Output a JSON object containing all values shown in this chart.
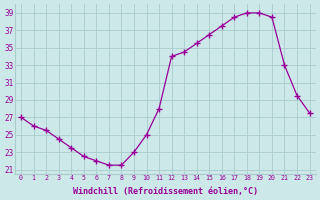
{
  "x": [
    0,
    1,
    2,
    3,
    4,
    5,
    6,
    7,
    8,
    9,
    10,
    11,
    12,
    13,
    14,
    15,
    16,
    17,
    18,
    19,
    20,
    21,
    22,
    23
  ],
  "y": [
    27,
    26,
    25.5,
    24.5,
    23.5,
    22.5,
    22,
    21.5,
    21.5,
    23,
    25,
    28,
    34,
    34.5,
    35.5,
    36.5,
    37.5,
    38.5,
    39,
    39,
    38.5,
    33,
    29.5,
    27.5
  ],
  "line_color": "#990099",
  "marker": "+",
  "bg_color": "#cce8e8",
  "grid_color": "#aacccc",
  "xlabel": "Windchill (Refroidissement éolien,°C)",
  "xlabel_color": "#990099",
  "tick_color": "#990099",
  "ylim": [
    20.5,
    40.0
  ],
  "yticks": [
    21,
    23,
    25,
    27,
    29,
    31,
    33,
    35,
    37,
    39
  ],
  "xticks": [
    0,
    1,
    2,
    3,
    4,
    5,
    6,
    7,
    8,
    9,
    10,
    11,
    12,
    13,
    14,
    15,
    16,
    17,
    18,
    19,
    20,
    21,
    22,
    23
  ],
  "xlim": [
    -0.5,
    23.5
  ],
  "figsize": [
    3.2,
    2.0
  ],
  "dpi": 100
}
